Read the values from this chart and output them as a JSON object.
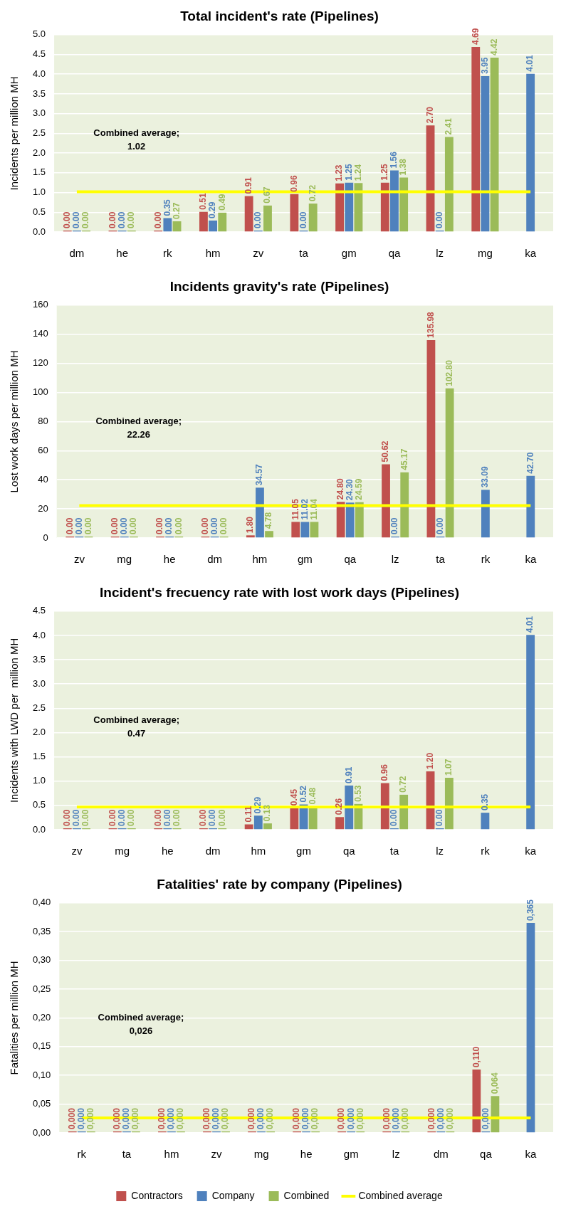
{
  "chart_data": [
    {
      "type": "bar",
      "title": "Total incident's rate (Pipelines)",
      "ylabel": "Incidents per million MH",
      "categories": [
        "dm",
        "he",
        "rk",
        "hm",
        "zv",
        "ta",
        "gm",
        "qa",
        "lz",
        "mg",
        "ka"
      ],
      "ylim": [
        0,
        5
      ],
      "yticks": [
        {
          "value": 0,
          "label": "0.0"
        },
        0.5,
        {
          "value": 1,
          "label": "1.0"
        },
        1.5,
        {
          "value": 2,
          "label": "2.0"
        },
        2.5,
        {
          "value": 3,
          "label": "3.0"
        },
        3.5,
        {
          "value": 4,
          "label": "4.0"
        },
        4.5,
        {
          "value": 5,
          "label": "5.0"
        }
      ],
      "grid": "y",
      "legend": false,
      "annotations": [
        "Combined average; 1.02"
      ],
      "series": [
        {
          "color": "#c0504d",
          "values": [
            0,
            0,
            0,
            0.51,
            0.91,
            0.96,
            1.23,
            1.25,
            2.7,
            4.69,
            null
          ],
          "value_labels": [
            "0.00",
            "0.00",
            "0.00",
            "0.51",
            "0.91",
            "0.96",
            "1.23",
            "1.25",
            "2.70",
            "4.69",
            null
          ]
        },
        {
          "color": "#4f81bd",
          "values": [
            0,
            0,
            0.35,
            0.29,
            0,
            0,
            1.25,
            1.56,
            0,
            3.95,
            4.01
          ],
          "value_labels": [
            "0.00",
            "0.00",
            "0.35",
            "0.29",
            "0.00",
            "0.00",
            "1.25",
            "1.56",
            "0.00",
            "3.95",
            "4.01"
          ]
        },
        {
          "color": "#9bbb59",
          "values": [
            0,
            0,
            0.27,
            0.49,
            0.67,
            0.72,
            1.24,
            1.38,
            2.41,
            4.42,
            null
          ],
          "value_labels": [
            "0.00",
            "0.00",
            "0.27",
            "0.49",
            "0.67",
            "0.72",
            "1.24",
            "1.38",
            "2.41",
            "4.42",
            null
          ]
        },
        {
          "type": "line",
          "color": "#ffff00",
          "values": [
            1.02,
            1.02,
            1.02,
            1.02,
            1.02,
            1.02,
            1.02,
            1.02,
            1.02,
            1.02,
            1.02
          ]
        }
      ]
    },
    {
      "type": "bar",
      "title": "Incidents gravity's rate (Pipelines)",
      "ylabel": "Lost work days per million MH",
      "categories": [
        "zv",
        "mg",
        "he",
        "dm",
        "hm",
        "gm",
        "qa",
        "lz",
        "ta",
        "rk",
        "ka"
      ],
      "ylim": [
        0,
        160
      ],
      "yticks": [
        0,
        20,
        40,
        60,
        80,
        100,
        120,
        140,
        160
      ],
      "grid": "y",
      "legend": false,
      "annotations": [
        "Combined average; 22.26"
      ],
      "series": [
        {
          "color": "#c0504d",
          "values": [
            0,
            0,
            0,
            0,
            1.8,
            11.05,
            24.8,
            50.62,
            135.98,
            null,
            null
          ],
          "value_labels": [
            "0.00",
            "0.00",
            "0.00",
            "0.00",
            "1.80",
            "11.05",
            "24.80",
            "50.62",
            "135.98",
            null,
            null
          ]
        },
        {
          "color": "#4f81bd",
          "values": [
            0,
            0,
            0,
            0,
            34.57,
            11.02,
            24.3,
            0,
            0,
            33.09,
            42.7
          ],
          "value_labels": [
            "0.00",
            "0.00",
            "0.00",
            "0.00",
            "34.57",
            "11.02",
            "24.30",
            "0.00",
            "0.00",
            "33.09",
            "42.70"
          ]
        },
        {
          "color": "#9bbb59",
          "values": [
            0,
            0,
            0,
            0,
            4.78,
            11.04,
            24.59,
            45.17,
            102.8,
            null,
            null
          ],
          "value_labels": [
            "0.00",
            "0.00",
            "0.00",
            "0.00",
            "4.78",
            "11.04",
            "24.59",
            "45.17",
            "102.80",
            null,
            null
          ]
        },
        {
          "type": "line",
          "color": "#ffff00",
          "values": [
            22.26,
            22.26,
            22.26,
            22.26,
            22.26,
            22.26,
            22.26,
            22.26,
            22.26,
            22.26,
            22.26
          ]
        }
      ]
    },
    {
      "type": "bar",
      "title": "Incident's frecuency rate with lost work days (Pipelines)",
      "ylabel": "Incidents with LWD per  million MH",
      "categories": [
        "zv",
        "mg",
        "he",
        "dm",
        "hm",
        "gm",
        "qa",
        "ta",
        "lz",
        "rk",
        "ka"
      ],
      "ylim": [
        0,
        4.5
      ],
      "yticks": [
        {
          "value": 0,
          "label": "0.0"
        },
        0.5,
        {
          "value": 1,
          "label": "1.0"
        },
        1.5,
        {
          "value": 2,
          "label": "2.0"
        },
        2.5,
        {
          "value": 3,
          "label": "3.0"
        },
        3.5,
        {
          "value": 4,
          "label": "4.0"
        },
        4.5
      ],
      "grid": "y",
      "legend": false,
      "annotations": [
        "Combined average; 0.47"
      ],
      "series": [
        {
          "color": "#c0504d",
          "values": [
            0,
            0,
            0,
            0,
            0.11,
            0.45,
            0.26,
            0.96,
            1.2,
            null,
            null
          ],
          "value_labels": [
            "0.00",
            "0.00",
            "0.00",
            "0.00",
            "0.11",
            "0.45",
            "0.26",
            "0.96",
            "1.20",
            null,
            null
          ]
        },
        {
          "color": "#4f81bd",
          "values": [
            0,
            0,
            0,
            0,
            0.29,
            0.52,
            0.91,
            0,
            0,
            0.35,
            4.01
          ],
          "value_labels": [
            "0.00",
            "0.00",
            "0.00",
            "0.00",
            "0.29",
            "0.52",
            "0.91",
            "0.00",
            "0.00",
            "0.35",
            "4.01"
          ]
        },
        {
          "color": "#9bbb59",
          "values": [
            0,
            0,
            0,
            0,
            0.13,
            0.48,
            0.53,
            0.72,
            1.07,
            null,
            null
          ],
          "value_labels": [
            "0.00",
            "0.00",
            "0.00",
            "0.00",
            "0.13",
            "0.48",
            "0.53",
            "0.72",
            "1.07",
            null,
            null
          ]
        },
        {
          "type": "line",
          "color": "#ffff00",
          "values": [
            0.47,
            0.47,
            0.47,
            0.47,
            0.47,
            0.47,
            0.47,
            0.47,
            0.47,
            0.47,
            0.47
          ]
        }
      ]
    },
    {
      "type": "bar",
      "title": "Fatalities' rate by company (Pipelines)",
      "ylabel": "Fatalities per million MH",
      "categories": [
        "rk",
        "ta",
        "hm",
        "zv",
        "mg",
        "he",
        "gm",
        "lz",
        "dm",
        "qa",
        "ka"
      ],
      "ylim": [
        0,
        0.4
      ],
      "yticks": [
        {
          "value": 0,
          "label": "0,00"
        },
        {
          "value": 0.05,
          "label": "0,05"
        },
        {
          "value": 0.1,
          "label": "0,10"
        },
        {
          "value": 0.15,
          "label": "0,15"
        },
        {
          "value": 0.2,
          "label": "0,20"
        },
        {
          "value": 0.25,
          "label": "0,25"
        },
        {
          "value": 0.3,
          "label": "0,30"
        },
        {
          "value": 0.35,
          "label": "0,35"
        },
        {
          "value": 0.4,
          "label": "0,40"
        }
      ],
      "grid": "y",
      "legend": "bottom",
      "annotations": [
        "Combined average; 0,026"
      ],
      "series": [
        {
          "name": "Contractors",
          "color": "#c0504d",
          "values": [
            0,
            0,
            0,
            0,
            0,
            0,
            0,
            0,
            0,
            0.11,
            null
          ],
          "value_labels": [
            "0,000",
            "0,000",
            "0,000",
            "0,000",
            "0,000",
            "0,000",
            "0,000",
            "0,000",
            "0,000",
            "0,110",
            null
          ]
        },
        {
          "name": "Company",
          "color": "#4f81bd",
          "values": [
            0,
            0,
            0,
            0,
            0,
            0,
            0,
            0,
            0,
            0,
            0.365
          ],
          "value_labels": [
            "0,000",
            "0,000",
            "0,000",
            "0,000",
            "0,000",
            "0,000",
            "0,000",
            "0,000",
            "0,000",
            "0,000",
            "0,365"
          ]
        },
        {
          "name": "Combined",
          "color": "#9bbb59",
          "values": [
            0,
            0,
            0,
            0,
            0,
            0,
            0,
            0,
            0,
            0.064,
            null
          ],
          "value_labels": [
            "0,000",
            "0,000",
            "0,000",
            "0,000",
            "0,000",
            "0,000",
            "0,000",
            "0,000",
            "0,000",
            "0,064",
            null
          ]
        },
        {
          "type": "line",
          "name": "Combined average",
          "color": "#ffff00",
          "values": [
            0.026,
            0.026,
            0.026,
            0.026,
            0.026,
            0.026,
            0.026,
            0.026,
            0.026,
            0.026,
            0.026
          ]
        }
      ]
    }
  ]
}
